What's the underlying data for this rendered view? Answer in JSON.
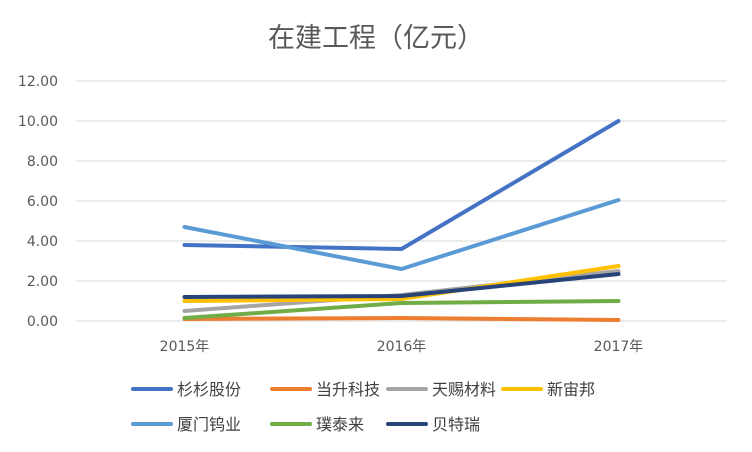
{
  "chart_data": {
    "type": "line",
    "title": "在建工程（亿元）",
    "xlabel": "",
    "ylabel": "",
    "categories": [
      "2015年",
      "2016年",
      "2017年"
    ],
    "ylim": [
      0,
      12
    ],
    "yticks": [
      "0.00",
      "2.00",
      "4.00",
      "6.00",
      "8.00",
      "10.00",
      "12.00"
    ],
    "grid": true,
    "legend_position": "bottom",
    "series": [
      {
        "name": "杉杉股份",
        "color": "#4472C4",
        "values": [
          3.8,
          3.6,
          10.0
        ]
      },
      {
        "name": "当升科技",
        "color": "#ED7D31",
        "values": [
          0.1,
          0.15,
          0.05
        ]
      },
      {
        "name": "天赐材料",
        "color": "#A5A5A5",
        "values": [
          0.5,
          1.3,
          2.5
        ]
      },
      {
        "name": "新宙邦",
        "color": "#FFC000",
        "values": [
          1.0,
          1.1,
          2.75
        ]
      },
      {
        "name": "厦门钨业",
        "color": "#5B9BD5",
        "values": [
          4.7,
          2.6,
          6.05
        ]
      },
      {
        "name": "璞泰来",
        "color": "#70AD47",
        "values": [
          0.15,
          0.9,
          1.0
        ]
      },
      {
        "name": "贝特瑞",
        "color": "#264478",
        "values": [
          1.2,
          1.25,
          2.35
        ]
      }
    ]
  }
}
